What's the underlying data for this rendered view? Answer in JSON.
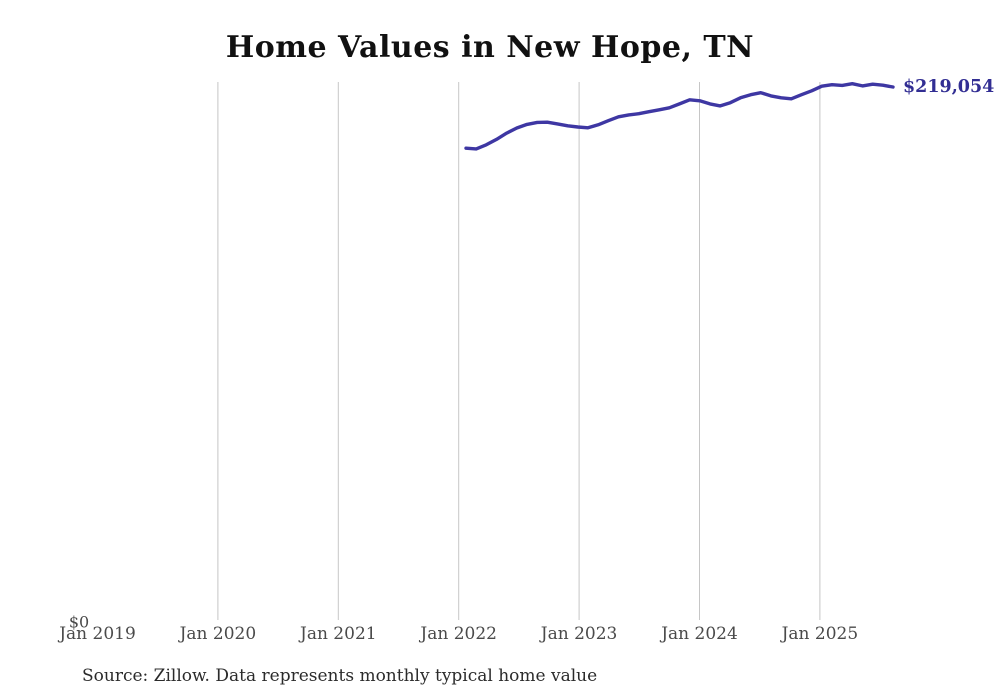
{
  "title": "Home Values in New Hope, TN",
  "source_note": "Source: Zillow. Data represents monthly typical home value",
  "colors": {
    "line": "#3e37a3",
    "end_label": "#322e93",
    "gridline": "#c6c6c6",
    "axis_label": "#4a4a4a",
    "title": "#111111"
  },
  "chart_data": {
    "type": "line",
    "title": "Home Values in New Hope, TN",
    "xlabel": "",
    "ylabel": "",
    "ylim": [
      0,
      230000
    ],
    "grid": "vertical-year-gridlines-only",
    "legend": "none",
    "y_origin_label": "$0",
    "end_value_label": "$219,054",
    "x_tick_labels": [
      "Jan 2019",
      "Jan 2020",
      "Jan 2021",
      "Jan 2022",
      "Jan 2023",
      "Jan 2024",
      "Jan 2025"
    ],
    "series_name": "Typical home value",
    "x": [
      "Feb 2022",
      "Mar 2022",
      "Apr 2022",
      "May 2022",
      "Jun 2022",
      "Jul 2022",
      "Aug 2022",
      "Sep 2022",
      "Oct 2022",
      "Nov 2022",
      "Dec 2022",
      "Jan 2023",
      "Feb 2023",
      "Mar 2023",
      "Apr 2023",
      "May 2023",
      "Jun 2023",
      "Jul 2023",
      "Aug 2023",
      "Sep 2023",
      "Oct 2023",
      "Nov 2023",
      "Dec 2023",
      "Jan 2024",
      "Feb 2024",
      "Mar 2024",
      "Apr 2024",
      "May 2024",
      "Jun 2024",
      "Jul 2024",
      "Aug 2024",
      "Sep 2024",
      "Oct 2024",
      "Nov 2024",
      "Dec 2024",
      "Jan 2025",
      "Feb 2025",
      "Mar 2025",
      "Apr 2025",
      "May 2025",
      "Jun 2025",
      "Jul 2025",
      "Aug 2025"
    ],
    "values": [
      193900,
      193600,
      195300,
      197500,
      200100,
      202200,
      203700,
      204500,
      204600,
      203900,
      203100,
      202600,
      202300,
      203500,
      205200,
      206800,
      207600,
      208100,
      208900,
      209700,
      210500,
      212100,
      213800,
      213400,
      212100,
      211300,
      212600,
      214600,
      215900,
      216700,
      215400,
      214600,
      214200,
      215900,
      217500,
      219400,
      220000,
      219700,
      220400,
      219500,
      220200,
      219800,
      219054
    ]
  }
}
